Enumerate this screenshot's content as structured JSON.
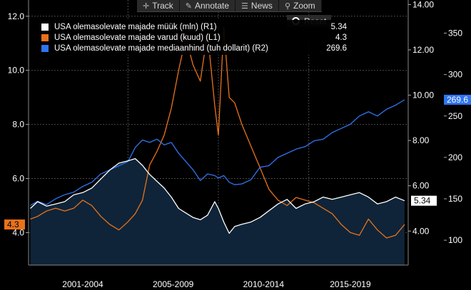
{
  "toolbar": {
    "track_label": "Track",
    "annotate_label": "Annotate",
    "news_label": "News",
    "zoom_label": "Zoom",
    "reset_label": "Reset"
  },
  "colors": {
    "background": "#000000",
    "area_fill": "#0f2438",
    "sales": "#ffffff",
    "inventory": "#e8721c",
    "median_price": "#2f74f0",
    "grid": "#4a4a4a"
  },
  "chart_data": {
    "type": "line",
    "legend_placement": "top-left",
    "grid": true,
    "x_ticks": [
      "2001-2004",
      "2005-2009",
      "2010-2014",
      "2015-2019"
    ],
    "x_range": [
      1999.5,
      2020.5
    ],
    "axes": {
      "L1": {
        "ticks": [
          "4.0",
          "6.0",
          "8.0",
          "10.0",
          "12.0"
        ],
        "range": [
          2.8,
          12.6
        ]
      },
      "R1": {
        "ticks": [
          "4.00",
          "6.00",
          "8.00",
          "10.00",
          "12.00",
          "14.00"
        ],
        "range": [
          2.5,
          14.2
        ]
      },
      "R2": {
        "ticks": [
          "100",
          "150",
          "200",
          "250",
          "300",
          "350"
        ],
        "range": [
          70,
          390
        ]
      }
    },
    "last_value_badges": {
      "inventory": "4.3",
      "sales": "5.34",
      "median_price": "269.6"
    },
    "series": [
      {
        "key": "sales",
        "name": "USA olemasolevate majade müük (mln) (R1)",
        "axis": "R1",
        "legend_value": "5.34",
        "area": true,
        "x": [
          1999.6,
          2000.0,
          2000.5,
          2001.0,
          2001.5,
          2002.0,
          2002.5,
          2003.0,
          2003.5,
          2004.0,
          2004.5,
          2005.0,
          2005.4,
          2005.8,
          2006.2,
          2006.6,
          2007.0,
          2007.4,
          2007.8,
          2008.2,
          2008.6,
          2009.0,
          2009.4,
          2009.8,
          2010.0,
          2010.3,
          2010.6,
          2010.9,
          2011.3,
          2011.8,
          2012.3,
          2012.8,
          2013.3,
          2013.8,
          2014.3,
          2014.8,
          2015.3,
          2015.8,
          2016.3,
          2016.8,
          2017.3,
          2017.8,
          2018.3,
          2018.8,
          2019.3,
          2019.8,
          2020.3
        ],
        "values": [
          5.0,
          5.3,
          5.1,
          5.2,
          5.3,
          5.6,
          5.7,
          5.9,
          6.3,
          6.7,
          7.0,
          7.1,
          7.2,
          6.9,
          6.5,
          6.2,
          5.9,
          5.5,
          5.0,
          4.8,
          4.6,
          4.5,
          4.7,
          5.3,
          5.0,
          4.4,
          3.9,
          4.2,
          4.3,
          4.4,
          4.6,
          4.9,
          5.2,
          5.4,
          5.0,
          5.2,
          5.3,
          5.5,
          5.4,
          5.5,
          5.6,
          5.7,
          5.5,
          5.2,
          5.3,
          5.5,
          5.34
        ]
      },
      {
        "key": "inventory",
        "name": "USA olemasolevate majade varud (kuud) (L1)",
        "axis": "L1",
        "legend_value": "4.3",
        "x": [
          1999.6,
          2000.0,
          2000.5,
          2001.0,
          2001.5,
          2002.0,
          2002.5,
          2003.0,
          2003.5,
          2004.0,
          2004.5,
          2005.0,
          2005.4,
          2005.8,
          2006.2,
          2006.6,
          2007.0,
          2007.4,
          2007.8,
          2008.2,
          2008.6,
          2009.0,
          2009.4,
          2009.8,
          2010.0,
          2010.3,
          2010.6,
          2010.9,
          2011.3,
          2011.8,
          2012.3,
          2012.8,
          2013.3,
          2013.8,
          2014.3,
          2014.8,
          2015.3,
          2015.8,
          2016.3,
          2016.8,
          2017.3,
          2017.8,
          2018.3,
          2018.8,
          2019.3,
          2019.8,
          2020.3
        ],
        "values": [
          4.5,
          4.6,
          4.8,
          4.9,
          4.8,
          4.9,
          5.2,
          5.0,
          4.6,
          4.3,
          4.1,
          4.4,
          4.7,
          5.2,
          6.5,
          7.0,
          7.6,
          8.6,
          10.0,
          11.2,
          10.2,
          9.6,
          11.4,
          8.7,
          7.6,
          11.6,
          9.0,
          8.8,
          8.0,
          7.2,
          6.4,
          5.6,
          5.2,
          5.0,
          5.3,
          5.2,
          5.1,
          4.9,
          4.7,
          4.3,
          4.0,
          3.9,
          4.5,
          4.1,
          3.8,
          3.9,
          4.3
        ]
      },
      {
        "key": "median_price",
        "name": "USA olemasolevate majade mediaanhind (tuh dollarit) (R2)",
        "axis": "R2",
        "legend_value": "269.6",
        "x": [
          1999.6,
          2000.0,
          2000.5,
          2001.0,
          2001.5,
          2002.0,
          2002.5,
          2003.0,
          2003.5,
          2004.0,
          2004.5,
          2005.0,
          2005.4,
          2005.8,
          2006.2,
          2006.6,
          2007.0,
          2007.4,
          2007.8,
          2008.2,
          2008.6,
          2009.0,
          2009.4,
          2009.8,
          2010.0,
          2010.3,
          2010.6,
          2010.9,
          2011.3,
          2011.8,
          2012.3,
          2012.8,
          2013.3,
          2013.8,
          2014.3,
          2014.8,
          2015.3,
          2015.8,
          2016.3,
          2016.8,
          2017.3,
          2017.8,
          2018.3,
          2018.8,
          2019.3,
          2019.8,
          2020.3
        ],
        "values": [
          142,
          147,
          143,
          150,
          155,
          158,
          165,
          170,
          180,
          185,
          190,
          195,
          212,
          221,
          218,
          222,
          215,
          218,
          205,
          195,
          185,
          172,
          180,
          178,
          175,
          178,
          170,
          167,
          168,
          173,
          188,
          190,
          200,
          205,
          210,
          213,
          220,
          222,
          230,
          235,
          240,
          250,
          255,
          250,
          258,
          263,
          269.6
        ]
      }
    ]
  }
}
